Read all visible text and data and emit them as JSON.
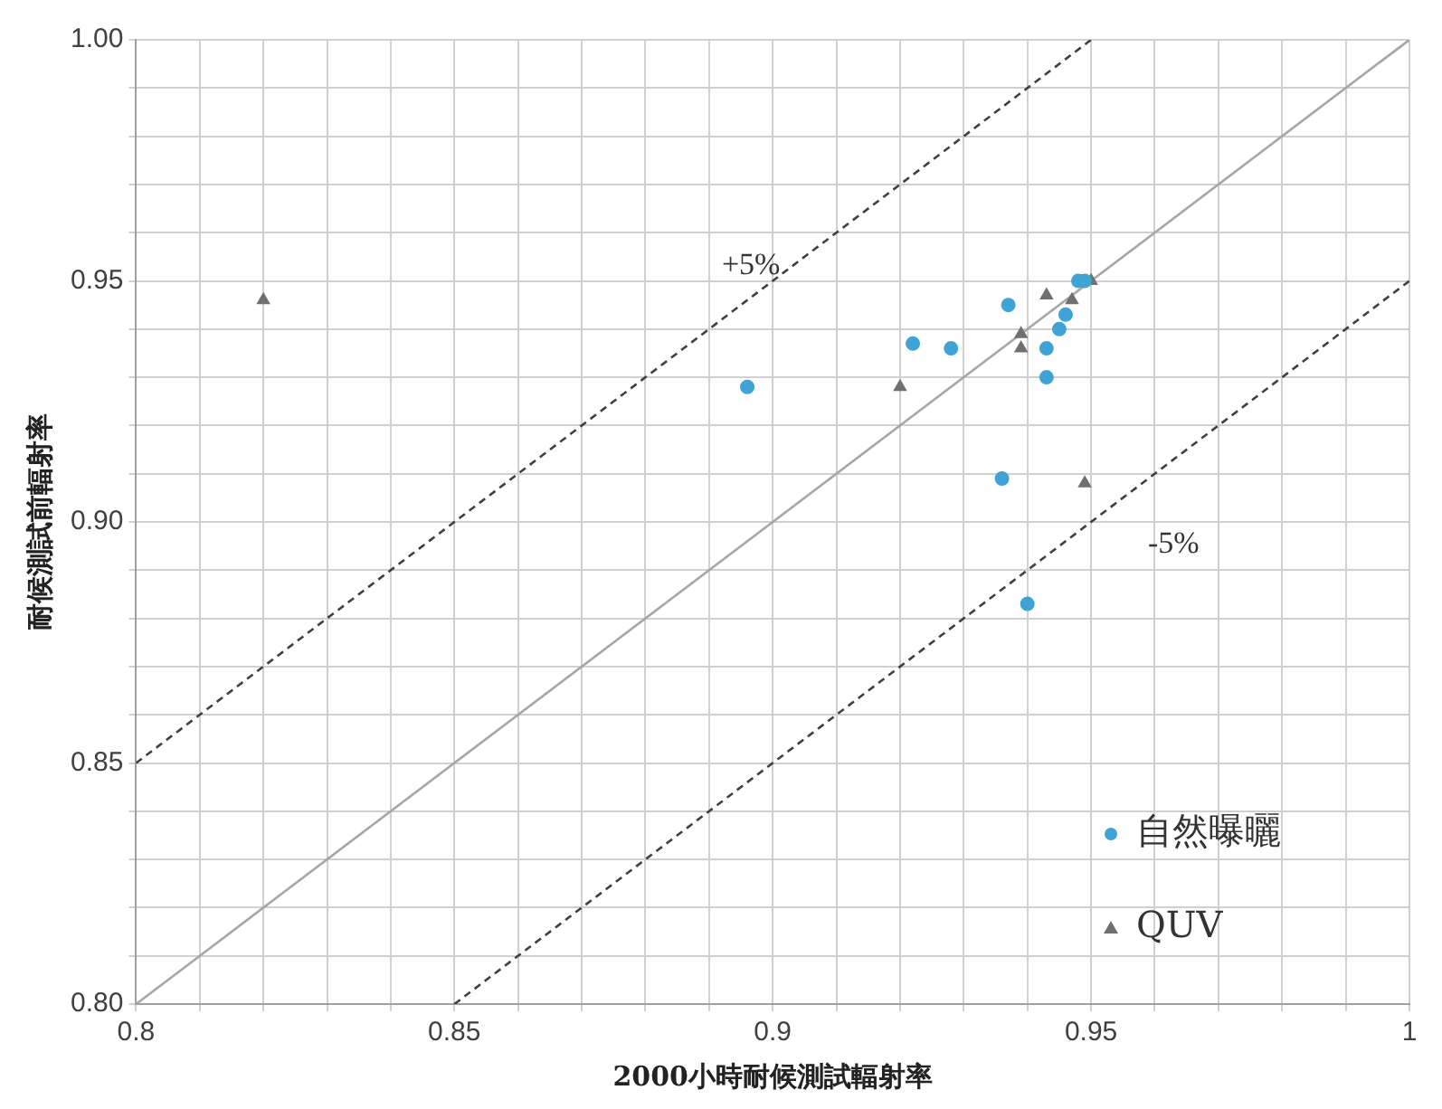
{
  "chart_data": {
    "type": "scatter",
    "xlabel": "2000小時耐候測試輻射率",
    "ylabel": "耐候測試前輻射率",
    "xlim": [
      0.8,
      1
    ],
    "ylim": [
      0.8,
      1
    ],
    "xticks": [
      0.8,
      {
        "value": 0.81,
        "label": null
      },
      {
        "value": 0.82,
        "label": null
      },
      {
        "value": 0.83,
        "label": null
      },
      {
        "value": 0.84,
        "label": null
      },
      0.85,
      {
        "value": 0.86,
        "label": null
      },
      {
        "value": 0.87,
        "label": null
      },
      {
        "value": 0.88,
        "label": null
      },
      {
        "value": 0.89,
        "label": null
      },
      0.9,
      {
        "value": 0.91,
        "label": null
      },
      {
        "value": 0.92,
        "label": null
      },
      {
        "value": 0.93,
        "label": null
      },
      {
        "value": 0.94,
        "label": null
      },
      0.95,
      {
        "value": 0.96,
        "label": null
      },
      {
        "value": 0.97,
        "label": null
      },
      {
        "value": 0.98,
        "label": null
      },
      {
        "value": 0.99,
        "label": null
      },
      1
    ],
    "yticks": [
      {
        "value": 0.8,
        "label": "0.80"
      },
      {
        "value": 0.81,
        "label": null
      },
      {
        "value": 0.82,
        "label": null
      },
      {
        "value": 0.83,
        "label": null
      },
      {
        "value": 0.84,
        "label": null
      },
      0.85,
      {
        "value": 0.86,
        "label": null
      },
      {
        "value": 0.87,
        "label": null
      },
      {
        "value": 0.88,
        "label": null
      },
      {
        "value": 0.89,
        "label": null
      },
      {
        "value": 0.9,
        "label": "0.90"
      },
      {
        "value": 0.91,
        "label": null
      },
      {
        "value": 0.92,
        "label": null
      },
      {
        "value": 0.93,
        "label": null
      },
      {
        "value": 0.94,
        "label": null
      },
      0.95,
      {
        "value": 0.96,
        "label": null
      },
      {
        "value": 0.97,
        "label": null
      },
      {
        "value": 0.98,
        "label": null
      },
      {
        "value": 0.99,
        "label": null
      },
      {
        "value": 1,
        "label": "1.00"
      }
    ],
    "grid": true,
    "legend": "bottom right",
    "series": [
      {
        "name": "自然曝曬",
        "color": "#3fa3d6",
        "marker": "circle",
        "x": [
          0.896,
          0.922,
          0.928,
          0.937,
          0.936,
          0.94,
          0.943,
          0.943,
          0.945,
          0.946,
          0.948,
          0.949
        ],
        "values": [
          0.928,
          0.937,
          0.936,
          0.945,
          0.909,
          0.883,
          0.936,
          0.93,
          0.94,
          0.943,
          0.95,
          0.95
        ]
      },
      {
        "name": "QUV",
        "color": "#707070",
        "marker": "triangle",
        "x": [
          0.82,
          0.92,
          0.939,
          0.939,
          0.943,
          0.947,
          0.949,
          0.95
        ],
        "values": [
          0.946,
          0.928,
          0.939,
          0.936,
          0.947,
          0.946,
          0.908,
          0.95
        ]
      },
      {
        "type": "line",
        "color": "#a6a6a6",
        "line_style": "solid",
        "marker": "none",
        "x": [
          0.8,
          1
        ],
        "values": [
          0.8,
          1
        ]
      },
      {
        "type": "line",
        "color": "#404040",
        "line_style": "dashed",
        "marker": "none",
        "x": [
          0.8,
          0.95
        ],
        "values": [
          0.85,
          1
        ]
      },
      {
        "type": "line",
        "color": "#404040",
        "line_style": "dashed",
        "marker": "none",
        "x": [
          0.85,
          1
        ],
        "values": [
          0.8,
          0.95
        ]
      }
    ],
    "annotations": [
      {
        "text": "+5%",
        "x": 0.9,
        "y": 0.95
      },
      {
        "text": "-5%",
        "x": 0.955,
        "y": 0.905
      }
    ]
  }
}
